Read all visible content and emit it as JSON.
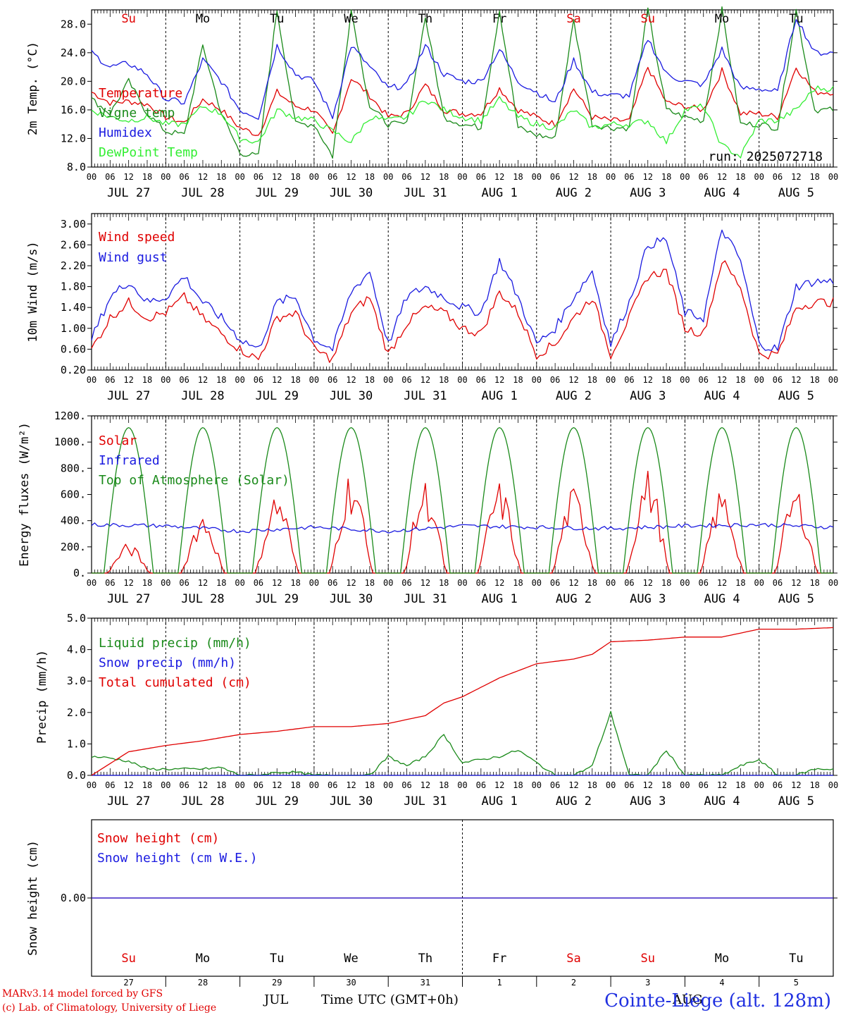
{
  "meta": {
    "run": "run: 2025072718",
    "time_axis_label": "Time UTC (GMT+0h)",
    "credit_line1": "MARv3.14 model forced by GFS",
    "credit_line2": "(c) Lab. of Climatology, University of Liege",
    "station": "Cointe-Liege (alt. 128m)",
    "month_jul": "JUL",
    "month_aug": "AUG"
  },
  "colors": {
    "red": "#e00000",
    "green": "#1a8a1a",
    "lightgreen": "#33ee33",
    "blue": "#1a1ae0",
    "black": "#000000"
  },
  "days": {
    "weekday": [
      "Su",
      "Mo",
      "Tu",
      "We",
      "Th",
      "Fr",
      "Sa",
      "Su",
      "Mo",
      "Tu"
    ],
    "weekday_red": [
      true,
      false,
      false,
      false,
      false,
      false,
      true,
      true,
      false,
      false
    ],
    "date": [
      "JUL 27",
      "JUL 28",
      "JUL 29",
      "JUL 30",
      "JUL 31",
      "AUG  1",
      "AUG  2",
      "AUG  3",
      "AUG  4",
      "AUG  5"
    ],
    "daynum": [
      "27",
      "28",
      "29",
      "30",
      "31",
      "1",
      "2",
      "3",
      "4",
      "5"
    ],
    "hour_ticks": [
      "00",
      "06",
      "12",
      "18"
    ],
    "end_tick": "00"
  },
  "chart_data": [
    {
      "type": "line",
      "ylabel": "2m Temp. (°C)",
      "ylim": [
        8,
        30
      ],
      "yticks": [
        "8.0",
        "12.0",
        "16.0",
        "20.0",
        "24.0",
        "28.0"
      ],
      "x_unit": "hours since JUL 27 00 UTC",
      "series": [
        {
          "name": "Temperature",
          "color": "red",
          "x": [
            0,
            6,
            12,
            18,
            24,
            30,
            36,
            42,
            48,
            54,
            60,
            66,
            72,
            78,
            84,
            90,
            96,
            102,
            108,
            114,
            120,
            126,
            132,
            138,
            144,
            150,
            156,
            162,
            168,
            174,
            180,
            186,
            192,
            198,
            204,
            210,
            216,
            222,
            228,
            234
          ],
          "values": [
            18.5,
            17.0,
            17.2,
            16.8,
            15.0,
            14.2,
            17.5,
            16.0,
            13.5,
            12.5,
            18.5,
            16.5,
            16.0,
            12.5,
            20.5,
            18.0,
            15.0,
            15.5,
            19.5,
            16.0,
            15.5,
            15.5,
            19.0,
            16.0,
            15.0,
            14.0,
            19.0,
            15.0,
            14.5,
            14.5,
            22.0,
            17.0,
            16.5,
            16.0,
            21.5,
            15.5,
            15.5,
            15.0,
            22.0,
            18.5
          ]
        },
        {
          "name": "Vigne temp",
          "color": "green",
          "x": [
            0,
            6,
            12,
            18,
            24,
            30,
            36,
            42,
            48,
            54,
            60,
            66,
            72,
            78,
            84,
            90,
            96,
            102,
            108,
            114,
            120,
            126,
            132,
            138,
            144,
            150,
            156,
            162,
            168,
            174,
            180,
            186,
            192,
            198,
            204,
            210,
            216,
            222,
            228,
            234
          ],
          "values": [
            17.5,
            15.5,
            20.0,
            15.5,
            13.0,
            12.5,
            25.0,
            15.5,
            10.0,
            9.5,
            30.0,
            14.0,
            14.0,
            9.5,
            30.0,
            16.5,
            14.0,
            14.0,
            29.0,
            15.0,
            14.0,
            13.5,
            30.0,
            13.5,
            12.5,
            12.0,
            28.5,
            14.0,
            13.5,
            13.5,
            30.0,
            16.0,
            15.0,
            14.5,
            30.0,
            14.0,
            14.0,
            13.5,
            30.0,
            16.0
          ]
        },
        {
          "name": "Humidex",
          "color": "blue",
          "x": [
            0,
            6,
            12,
            18,
            24,
            30,
            36,
            42,
            48,
            54,
            60,
            66,
            72,
            78,
            84,
            90,
            96,
            102,
            108,
            114,
            120,
            126,
            132,
            138,
            144,
            150,
            156,
            162,
            168,
            174,
            180,
            186,
            192,
            198,
            204,
            210,
            216,
            222,
            228,
            234
          ],
          "values": [
            24.0,
            22.0,
            22.5,
            21.0,
            17.5,
            17.0,
            23.0,
            20.0,
            16.0,
            15.0,
            25.0,
            21.0,
            20.0,
            15.0,
            25.0,
            22.0,
            19.0,
            19.5,
            25.0,
            21.0,
            20.0,
            20.0,
            24.5,
            20.0,
            18.5,
            17.0,
            23.0,
            18.5,
            18.0,
            18.0,
            26.0,
            21.0,
            20.0,
            19.5,
            24.5,
            19.0,
            19.0,
            18.5,
            29.0,
            24.0
          ]
        },
        {
          "name": "DewPoint Temp",
          "color": "lightgreen",
          "x": [
            0,
            6,
            12,
            18,
            24,
            30,
            36,
            42,
            48,
            54,
            60,
            66,
            72,
            78,
            84,
            90,
            96,
            102,
            108,
            114,
            120,
            126,
            132,
            138,
            144,
            150,
            156,
            162,
            168,
            174,
            180,
            186,
            192,
            198,
            204,
            210,
            216,
            222,
            228,
            234
          ],
          "values": [
            16.0,
            15.0,
            14.5,
            15.0,
            14.0,
            14.0,
            16.5,
            15.5,
            12.0,
            11.5,
            16.0,
            15.0,
            14.5,
            13.0,
            11.5,
            15.0,
            14.5,
            15.0,
            17.5,
            16.0,
            15.0,
            14.5,
            17.5,
            15.0,
            14.0,
            13.5,
            16.0,
            13.5,
            14.0,
            14.0,
            14.5,
            11.5,
            16.0,
            16.5,
            11.0,
            9.5,
            14.5,
            14.5,
            16.0,
            19.0
          ]
        }
      ]
    },
    {
      "type": "line",
      "ylabel": "10m Wind (m/s)",
      "ylim": [
        0.2,
        3.2
      ],
      "yticks": [
        "0.20",
        "0.60",
        "1.00",
        "1.40",
        "1.80",
        "2.20",
        "2.60",
        "3.00"
      ],
      "x_unit": "hours since JUL 27 00 UTC",
      "series": [
        {
          "name": "Wind speed",
          "color": "red",
          "x": [
            0,
            6,
            12,
            18,
            24,
            30,
            36,
            42,
            48,
            54,
            60,
            66,
            72,
            78,
            84,
            90,
            96,
            102,
            108,
            114,
            120,
            126,
            132,
            138,
            144,
            150,
            156,
            162,
            168,
            174,
            180,
            186,
            192,
            198,
            204,
            210,
            216,
            222,
            228,
            234
          ],
          "values": [
            0.6,
            1.2,
            1.5,
            1.2,
            1.3,
            1.6,
            1.2,
            0.9,
            0.6,
            0.4,
            1.2,
            1.3,
            0.6,
            0.4,
            1.3,
            1.6,
            0.5,
            1.1,
            1.4,
            1.3,
            1.0,
            0.9,
            1.7,
            1.3,
            0.5,
            0.7,
            1.2,
            1.6,
            0.5,
            1.2,
            2.0,
            2.1,
            1.0,
            0.9,
            2.3,
            1.8,
            0.5,
            0.5,
            1.4,
            1.5
          ]
        },
        {
          "name": "Wind gust",
          "color": "blue",
          "x": [
            0,
            6,
            12,
            18,
            24,
            30,
            36,
            42,
            48,
            54,
            60,
            66,
            72,
            78,
            84,
            90,
            96,
            102,
            108,
            114,
            120,
            126,
            132,
            138,
            144,
            150,
            156,
            162,
            168,
            174,
            180,
            186,
            192,
            198,
            204,
            210,
            216,
            222,
            228,
            234
          ],
          "values": [
            0.8,
            1.6,
            1.9,
            1.5,
            1.6,
            2.0,
            1.5,
            1.2,
            0.8,
            0.6,
            1.5,
            1.6,
            0.8,
            0.6,
            1.7,
            2.1,
            0.7,
            1.6,
            1.8,
            1.6,
            1.4,
            1.3,
            2.3,
            1.6,
            0.7,
            1.0,
            1.6,
            2.1,
            0.7,
            1.5,
            2.6,
            2.7,
            1.3,
            1.2,
            2.9,
            2.3,
            0.7,
            0.6,
            1.8,
            1.9
          ]
        }
      ]
    },
    {
      "type": "line",
      "ylabel": "Energy fluxes (W/m²)",
      "ylim": [
        0,
        1200
      ],
      "yticks": [
        "0.",
        "200.",
        "400.",
        "600.",
        "800.",
        "1000.",
        "1200."
      ],
      "x_unit": "hours since JUL 27 00 UTC",
      "series": [
        {
          "name": "Solar",
          "color": "red",
          "peaks": [
            230,
            480,
            640,
            800,
            720,
            700,
            660,
            800,
            650,
            670
          ]
        },
        {
          "name": "Infrared",
          "color": "blue",
          "x": [
            0,
            24,
            48,
            72,
            96,
            120,
            144,
            168,
            192,
            216,
            240
          ],
          "values": [
            370,
            360,
            320,
            350,
            320,
            360,
            350,
            340,
            360,
            370,
            350
          ]
        },
        {
          "name": "Top of Atmosphere (Solar)",
          "color": "green",
          "peak": 1110,
          "sunrise_h": 4,
          "sunset_h": 20
        }
      ]
    },
    {
      "type": "line",
      "ylabel": "Precip (mm/h)",
      "ylim": [
        0,
        5
      ],
      "yticks": [
        "0.0",
        "1.0",
        "2.0",
        "3.0",
        "4.0",
        "5.0"
      ],
      "x_unit": "hours since JUL 27 00 UTC",
      "series": [
        {
          "name": "Liquid precip (mm/h)",
          "color": "green",
          "x": [
            0,
            6,
            12,
            18,
            24,
            30,
            36,
            42,
            48,
            54,
            60,
            66,
            72,
            78,
            84,
            90,
            96,
            102,
            108,
            114,
            120,
            126,
            132,
            138,
            144,
            150,
            156,
            162,
            168,
            174,
            180,
            186,
            192,
            198,
            204,
            210,
            216,
            222,
            228,
            234
          ],
          "values": [
            0.6,
            0.55,
            0.45,
            0.2,
            0.2,
            0.2,
            0.2,
            0.25,
            0.0,
            0.0,
            0.1,
            0.1,
            0.0,
            0.0,
            0.0,
            0.0,
            0.6,
            0.3,
            0.6,
            1.3,
            0.4,
            0.5,
            0.6,
            0.8,
            0.4,
            0.0,
            0.0,
            0.3,
            2.0,
            0.0,
            0.0,
            0.8,
            0.0,
            0.0,
            0.0,
            0.3,
            0.5,
            0.0,
            0.0,
            0.2
          ]
        },
        {
          "name": "Snow precip (mm/h)",
          "color": "blue",
          "x": [
            0,
            240
          ],
          "values": [
            0.0,
            0.0
          ]
        },
        {
          "name": "Total cumulated (cm)",
          "color": "red",
          "x": [
            0,
            12,
            24,
            36,
            48,
            60,
            72,
            84,
            96,
            108,
            114,
            120,
            132,
            144,
            156,
            162,
            168,
            180,
            192,
            204,
            216,
            228,
            240
          ],
          "values": [
            0.0,
            0.75,
            0.95,
            1.1,
            1.3,
            1.4,
            1.55,
            1.55,
            1.65,
            1.9,
            2.3,
            2.5,
            3.1,
            3.55,
            3.7,
            3.85,
            4.25,
            4.3,
            4.4,
            4.4,
            4.65,
            4.65,
            4.7
          ]
        }
      ]
    },
    {
      "type": "line",
      "ylabel": "Snow height (cm)",
      "ylim": [
        -1,
        1
      ],
      "yticks": [
        "0.00"
      ],
      "x_unit": "hours since JUL 27 00 UTC",
      "series": [
        {
          "name": "Snow height (cm)",
          "color": "red",
          "x": [
            0,
            240
          ],
          "values": [
            0.0,
            0.0
          ]
        },
        {
          "name": "Snow height (cm W.E.)",
          "color": "blue",
          "x": [
            0,
            240
          ],
          "values": [
            0.0,
            0.0
          ]
        }
      ]
    }
  ]
}
